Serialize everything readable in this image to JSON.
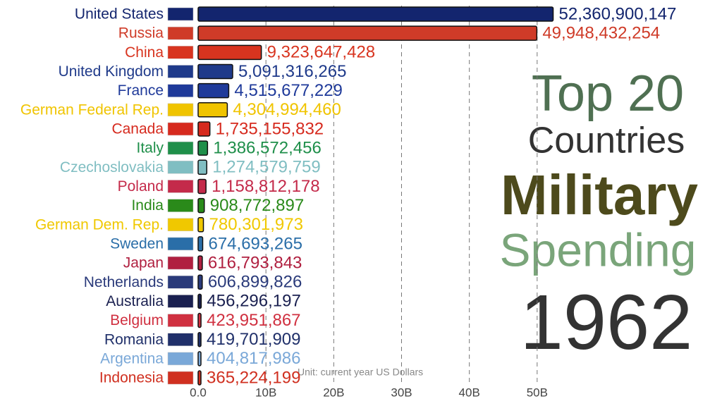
{
  "chart_data": {
    "type": "bar",
    "orientation": "horizontal",
    "title_lines": [
      "Top 20",
      "Countries",
      "Military",
      "Spending"
    ],
    "year": "1962",
    "annotation": "Unit: current year US Dollars",
    "categories": [
      "United States",
      "Russia",
      "China",
      "United Kingdom",
      "France",
      "German Federal Rep.",
      "Canada",
      "Italy",
      "Czechoslovakia",
      "Poland",
      "India",
      "German Dem. Rep.",
      "Sweden",
      "Japan",
      "Netherlands",
      "Australia",
      "Belgium",
      "Romania",
      "Argentina",
      "Indonesia"
    ],
    "values": [
      52360900147,
      49948432254,
      9323647428,
      5091316265,
      4515677229,
      4304994460,
      1735155832,
      1386572456,
      1274579759,
      1158812178,
      908772897,
      780301973,
      674693265,
      616793843,
      606899826,
      456296197,
      423951867,
      419701909,
      404817986,
      365224199
    ],
    "value_labels": [
      "52,360,900,147",
      "49,948,432,254",
      "9,323,647,428",
      "5,091,316,265",
      "4,515,677,229",
      "4,304,994,460",
      "1,735,155,832",
      "1,386,572,456",
      "1,274,579,759",
      "1,158,812,178",
      "908,772,897",
      "780,301,973",
      "674,693,265",
      "616,793,843",
      "606,899,826",
      "456,296,197",
      "423,951,867",
      "419,701,909",
      "404,817,986",
      "365,224,199"
    ],
    "colors": [
      "#13256e",
      "#cf3b28",
      "#d8341f",
      "#1f3a8a",
      "#1f3a9a",
      "#f0c400",
      "#d62a1e",
      "#1f8f4a",
      "#80bec2",
      "#c42a4a",
      "#2a8a1a",
      "#f0c800",
      "#2a6ea8",
      "#b02040",
      "#2a3a7a",
      "#1a2050",
      "#d03040",
      "#20306a",
      "#7aa8d8",
      "#d03020"
    ],
    "xlim": [
      0,
      60000000000
    ],
    "xticks": [
      {
        "value": 0,
        "label": "0.0"
      },
      {
        "value": 10000000000,
        "label": "10B"
      },
      {
        "value": 20000000000,
        "label": "20B"
      },
      {
        "value": 30000000000,
        "label": "30B"
      },
      {
        "value": 40000000000,
        "label": "40B"
      },
      {
        "value": 50000000000,
        "label": "50B"
      }
    ],
    "grid": true
  }
}
